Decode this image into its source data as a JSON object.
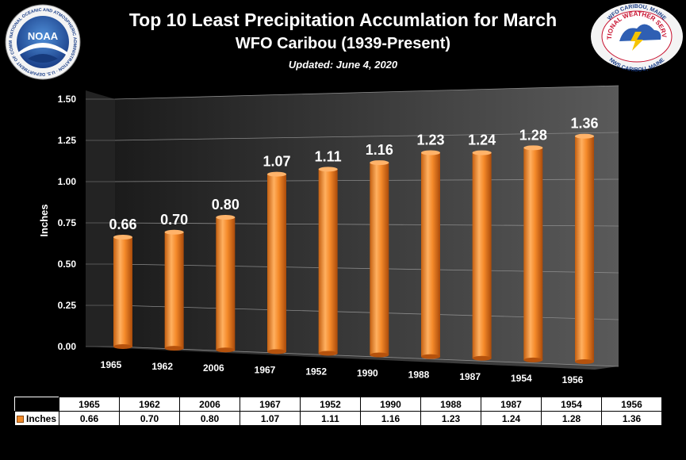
{
  "header": {
    "title": "Top 10 Least Precipitation Accumlation for March",
    "subtitle": "WFO Caribou (1939-Present)",
    "updated": "Updated: June 4, 2020"
  },
  "logos": {
    "noaa": {
      "center_text": "NOAA",
      "ring_text": "NATIONAL OCEANIC AND ATMOSPHERIC ADMINISTRATION · U.S. DEPARTMENT OF COMMERCE"
    },
    "nws": {
      "ring_top": "WFO CARIBOU, MAINE",
      "center_text": "NATIONAL WEATHER SERVICE",
      "ring_bottom": "NWS CARIBOU, MAINE"
    }
  },
  "chart_data": {
    "type": "bar",
    "categories": [
      "1965",
      "1962",
      "2006",
      "1967",
      "1952",
      "1990",
      "1988",
      "1987",
      "1954",
      "1956"
    ],
    "values": [
      0.66,
      0.7,
      0.8,
      1.07,
      1.11,
      1.16,
      1.23,
      1.24,
      1.28,
      1.36
    ],
    "value_labels": [
      "0.66",
      "0.70",
      "0.80",
      "1.07",
      "1.11",
      "1.16",
      "1.23",
      "1.24",
      "1.28",
      "1.36"
    ],
    "ylabel": "Inches",
    "ylim": [
      0,
      1.5
    ],
    "yticks": [
      "0.00",
      "0.25",
      "0.50",
      "0.75",
      "1.00",
      "1.25",
      "1.50"
    ],
    "series": [
      {
        "name": "Inches",
        "color": "#f08a2a"
      }
    ],
    "grid": true,
    "style": "3d-cylinder"
  },
  "table": {
    "row_label": "Inches",
    "columns": [
      "1965",
      "1962",
      "2006",
      "1967",
      "1952",
      "1990",
      "1988",
      "1987",
      "1954",
      "1956"
    ],
    "values": [
      "0.66",
      "0.70",
      "0.80",
      "1.07",
      "1.11",
      "1.16",
      "1.23",
      "1.24",
      "1.28",
      "1.36"
    ]
  }
}
